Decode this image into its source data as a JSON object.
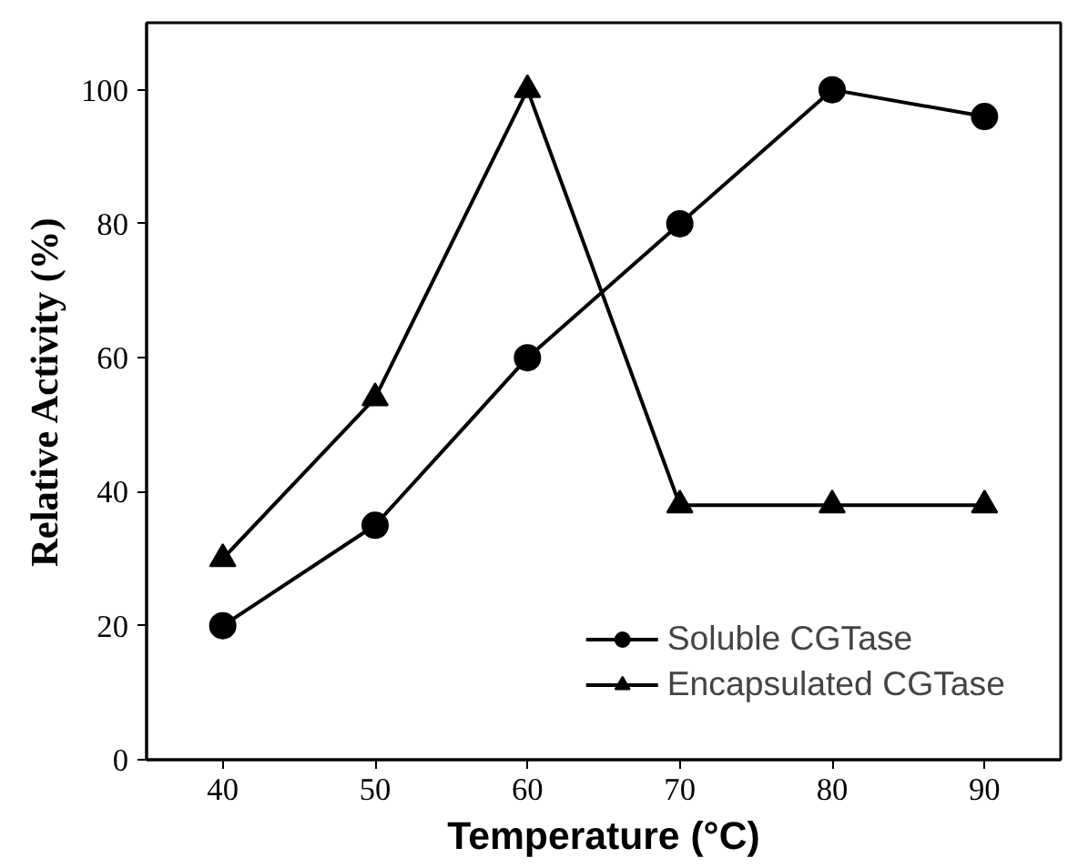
{
  "chart_data": {
    "type": "line",
    "xlabel": "Temperature (°C)",
    "ylabel": "Relative Activity (%)",
    "x": [
      40,
      50,
      60,
      70,
      80,
      90
    ],
    "series": [
      {
        "name": "Soluble CGTase",
        "color": "#000000",
        "marker": "circle",
        "values": [
          20,
          35,
          60,
          80,
          100,
          96
        ]
      },
      {
        "name": "Encapsulated CGTase",
        "color": "#000000",
        "marker": "triangle",
        "values": [
          30,
          54,
          100,
          38,
          38,
          38
        ]
      }
    ],
    "xlim": [
      35,
      95
    ],
    "ylim": [
      0,
      110
    ],
    "xticks": [
      40,
      50,
      60,
      70,
      80,
      90
    ],
    "yticks": [
      0,
      20,
      40,
      60,
      80,
      100
    ],
    "grid": false,
    "legend": "bottom right",
    "line_style": "solid"
  }
}
